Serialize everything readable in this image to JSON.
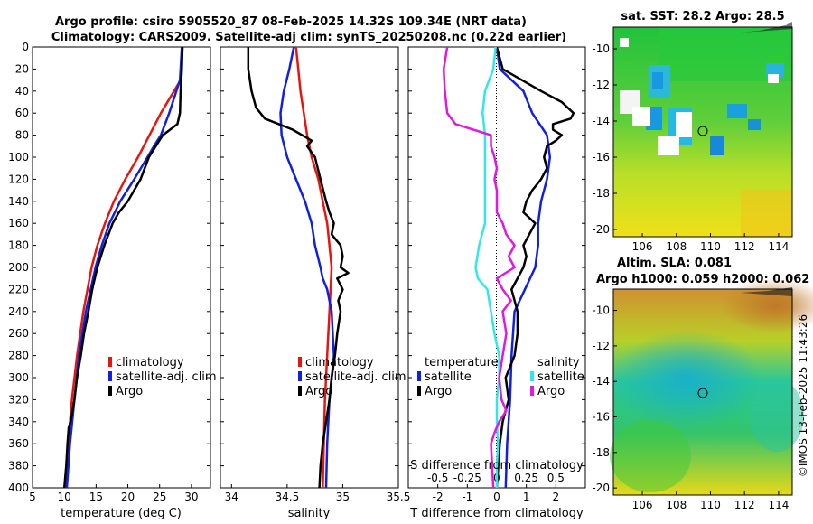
{
  "titles": {
    "line1": "Argo profile: csiro 5905520_87 08-Feb-2025 14.32S 109.34E (NRT data)",
    "line2": "Climatology: CARS2009. Satellite-adj clim: synTS_20250208.nc (0.22d earlier)"
  },
  "depth_ticks": [
    "0",
    "20",
    "40",
    "60",
    "80",
    "100",
    "120",
    "140",
    "160",
    "180",
    "200",
    "220",
    "240",
    "260",
    "280",
    "300",
    "320",
    "340",
    "360",
    "380",
    "400"
  ],
  "colors": {
    "climatology": "#e8150f",
    "satellite": "#1020e0",
    "argo": "#000000",
    "salinity_diff": "#30e8e8",
    "temp_diff_argo": "#e018e0"
  },
  "chart_data": [
    {
      "id": "temperature",
      "type": "line",
      "xlabel": "temperature (deg C)",
      "ylabel": "",
      "xlim": [
        5,
        33
      ],
      "ylim": [
        400,
        0
      ],
      "xticks": [
        "5",
        "10",
        "15",
        "20",
        "25",
        "30"
      ],
      "legend": [
        "climatology",
        "satellite-adj. clim",
        "Argo"
      ],
      "series": [
        {
          "name": "climatology",
          "depth": [
            0,
            30,
            60,
            80,
            100,
            120,
            140,
            160,
            180,
            200,
            240,
            280,
            320,
            360,
            400
          ],
          "values": [
            28.6,
            28.3,
            25.2,
            23.4,
            21.6,
            19.6,
            17.8,
            16.4,
            15.2,
            14.3,
            13.0,
            12.0,
            11.2,
            10.6,
            10.2
          ]
        },
        {
          "name": "satellite-adj. clim",
          "depth": [
            0,
            30,
            60,
            80,
            90,
            100,
            120,
            140,
            160,
            180,
            200,
            240,
            280,
            320,
            360,
            400
          ],
          "values": [
            28.5,
            28.2,
            26.5,
            25.2,
            24.1,
            23.1,
            21.0,
            18.8,
            17.1,
            15.9,
            14.9,
            13.4,
            12.3,
            11.6,
            10.9,
            10.4
          ]
        },
        {
          "name": "Argo",
          "depth": [
            0,
            20,
            40,
            60,
            70,
            80,
            100,
            120,
            140,
            150,
            160,
            180,
            200,
            220,
            240,
            260,
            280,
            300,
            320,
            340,
            345,
            360,
            380,
            400
          ],
          "values": [
            28.6,
            28.5,
            28.3,
            28.2,
            27.8,
            25.5,
            23.3,
            22.0,
            20.0,
            18.6,
            17.6,
            16.3,
            15.2,
            14.4,
            13.8,
            13.1,
            12.6,
            12.0,
            11.6,
            11.0,
            10.7,
            10.5,
            10.3,
            10.0
          ]
        }
      ]
    },
    {
      "id": "salinity",
      "type": "line",
      "xlabel": "salinity",
      "ylabel": "",
      "xlim": [
        33.9,
        35.5
      ],
      "ylim": [
        400,
        0
      ],
      "xticks": [
        "34",
        "34.5",
        "35",
        "35.5"
      ],
      "legend": [
        "climatology",
        "satellite-adj. clim",
        "Argo"
      ],
      "series": [
        {
          "name": "climatology",
          "depth": [
            0,
            20,
            40,
            60,
            80,
            100,
            120,
            140,
            160,
            180,
            200,
            240,
            280,
            320,
            360,
            400
          ],
          "values": [
            34.58,
            34.6,
            34.62,
            34.65,
            34.68,
            34.72,
            34.78,
            34.82,
            34.86,
            34.88,
            34.9,
            34.88,
            34.86,
            34.84,
            34.83,
            34.82
          ]
        },
        {
          "name": "satellite-adj. clim",
          "depth": [
            0,
            20,
            40,
            60,
            80,
            100,
            120,
            140,
            160,
            180,
            200,
            210,
            220,
            240,
            280,
            320,
            360,
            400
          ],
          "values": [
            34.56,
            34.52,
            34.47,
            34.44,
            34.45,
            34.5,
            34.58,
            34.66,
            34.72,
            34.75,
            34.8,
            34.82,
            34.86,
            34.9,
            34.92,
            34.88,
            34.86,
            34.85
          ]
        },
        {
          "name": "Argo",
          "depth": [
            0,
            20,
            40,
            55,
            65,
            75,
            85,
            90,
            100,
            120,
            140,
            150,
            160,
            170,
            180,
            190,
            200,
            205,
            210,
            220,
            230,
            240,
            260,
            280,
            300,
            320,
            340,
            360,
            380,
            400
          ],
          "values": [
            34.15,
            34.15,
            34.18,
            34.22,
            34.3,
            34.55,
            34.72,
            34.68,
            34.75,
            34.8,
            34.85,
            34.88,
            34.92,
            34.9,
            34.98,
            35.0,
            34.98,
            35.05,
            34.95,
            35.0,
            34.96,
            34.98,
            34.95,
            34.93,
            34.9,
            34.88,
            34.85,
            34.82,
            34.8,
            34.79
          ]
        }
      ]
    },
    {
      "id": "differences",
      "type": "line",
      "xlabel": "T difference from climatology",
      "x2label": "S difference from climatology",
      "ylabel": "",
      "xlim": [
        -3,
        3
      ],
      "x2lim": [
        -0.75,
        0.75
      ],
      "ylim": [
        400,
        0
      ],
      "xticks": [
        "-2",
        "-1",
        "0",
        "1",
        "2"
      ],
      "x2ticks": [
        "-0.5",
        "-0.25",
        "0",
        "0.25",
        "0.5"
      ],
      "legend_temperature_title": "temperature",
      "legend_salinity_title": "salinity",
      "legend": [
        "satellite",
        "Argo",
        "satellite",
        "Argo"
      ],
      "series": [
        {
          "name": "temperature satellite",
          "axis": "T",
          "depth": [
            0,
            20,
            40,
            60,
            80,
            100,
            120,
            140,
            160,
            180,
            200,
            240,
            280,
            320,
            360,
            400
          ],
          "values": [
            0.0,
            0.1,
            0.9,
            1.2,
            1.7,
            1.8,
            1.7,
            1.5,
            1.4,
            1.4,
            1.3,
            0.6,
            0.5,
            0.45,
            0.35,
            0.3
          ]
        },
        {
          "name": "temperature Argo",
          "axis": "T",
          "depth": [
            0,
            20,
            40,
            50,
            60,
            65,
            70,
            75,
            80,
            85,
            90,
            100,
            110,
            120,
            130,
            140,
            150,
            160,
            170,
            180,
            190,
            200,
            220,
            240,
            260,
            280,
            300,
            320,
            340,
            360,
            380,
            400
          ],
          "values": [
            0.0,
            0.2,
            1.5,
            2.2,
            2.6,
            2.5,
            1.9,
            1.9,
            2.2,
            2.0,
            1.7,
            1.6,
            1.7,
            1.5,
            1.2,
            1.0,
            0.9,
            1.3,
            1.1,
            0.9,
            1.0,
            0.9,
            0.5,
            0.7,
            0.7,
            0.6,
            0.3,
            0.4,
            0.2,
            0.1,
            0.05,
            0.0
          ]
        },
        {
          "name": "salinity satellite",
          "axis": "S",
          "depth": [
            0,
            20,
            40,
            60,
            80,
            100,
            120,
            140,
            160,
            180,
            200,
            210,
            220,
            240,
            260,
            280,
            300,
            320,
            340,
            360,
            380,
            400
          ],
          "values": [
            -0.01,
            -0.03,
            -0.1,
            -0.12,
            -0.1,
            -0.1,
            -0.1,
            -0.1,
            -0.1,
            -0.15,
            -0.18,
            -0.16,
            -0.08,
            -0.05,
            -0.02,
            0.02,
            0.02,
            0.0,
            0.0,
            0.01,
            0.0,
            0.0
          ]
        },
        {
          "name": "salinity Argo",
          "axis": "S",
          "depth": [
            0,
            20,
            40,
            60,
            70,
            80,
            90,
            100,
            110,
            120,
            130,
            140,
            150,
            160,
            170,
            180,
            190,
            200,
            210,
            220,
            230,
            240,
            260,
            280,
            300,
            320,
            330,
            340,
            350,
            360,
            380,
            400
          ],
          "values": [
            -0.42,
            -0.45,
            -0.44,
            -0.42,
            -0.35,
            -0.05,
            -0.05,
            -0.02,
            0.0,
            -0.02,
            0.0,
            0.0,
            0.0,
            0.05,
            0.08,
            0.15,
            0.1,
            0.15,
            0.0,
            0.05,
            0.12,
            0.05,
            0.08,
            0.05,
            0.02,
            0.04,
            0.08,
            0.02,
            -0.02,
            -0.05,
            -0.04,
            -0.03
          ]
        }
      ]
    }
  ],
  "map_sst": {
    "title": "sat. SST: 28.2 Argo: 28.5",
    "lat_ticks": [
      "-10",
      "-12",
      "-14",
      "-16",
      "-18",
      "-20"
    ],
    "lon_ticks": [
      "106",
      "108",
      "110",
      "112",
      "114"
    ],
    "marker": {
      "lon": 109.34,
      "lat": -14.32
    }
  },
  "map_sla": {
    "title1": "Altim. SLA: 0.081",
    "title2": "Argo h1000: 0.059 h2000: 0.062",
    "lat_ticks": [
      "-10",
      "-12",
      "-14",
      "-16",
      "-18",
      "-20"
    ],
    "lon_ticks": [
      "106",
      "108",
      "110",
      "112",
      "114"
    ],
    "marker": {
      "lon": 109.34,
      "lat": -14.32
    }
  },
  "credit": "©IMOS 13-Feb-2025 11:43:26"
}
